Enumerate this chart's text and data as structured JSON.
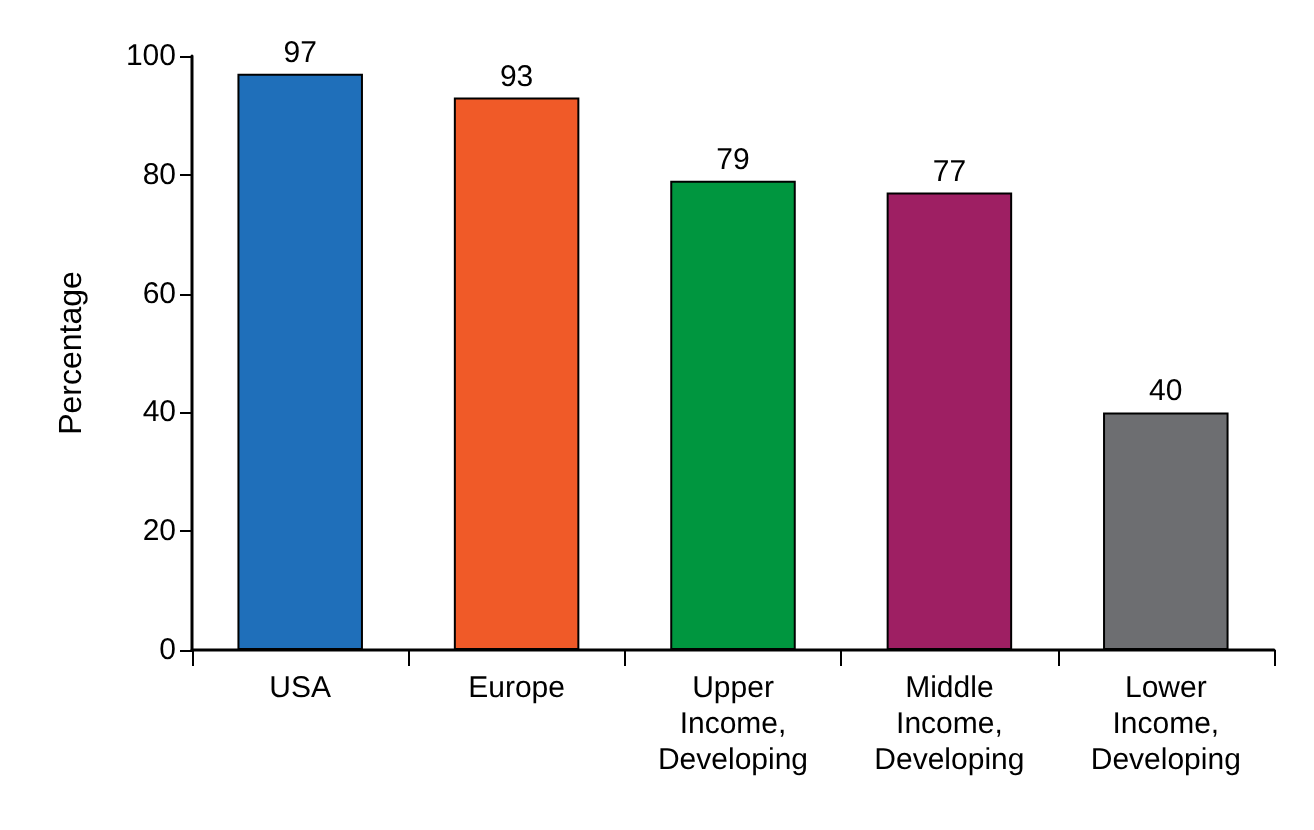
{
  "chart_data": {
    "type": "bar",
    "ylabel": "Percentage",
    "categories": [
      "USA",
      "Europe",
      "Upper Income, Developing",
      "Middle Income, Developing",
      "Lower Income, Developing"
    ],
    "values": [
      97,
      93,
      79,
      77,
      40
    ],
    "colors": [
      "#1f6fba",
      "#f05a28",
      "#00963f",
      "#9e1f63",
      "#6d6e71"
    ],
    "ylim": [
      0,
      100
    ],
    "yticks": [
      0,
      20,
      40,
      60,
      80,
      100
    ],
    "grid": false,
    "data_labels": true
  }
}
